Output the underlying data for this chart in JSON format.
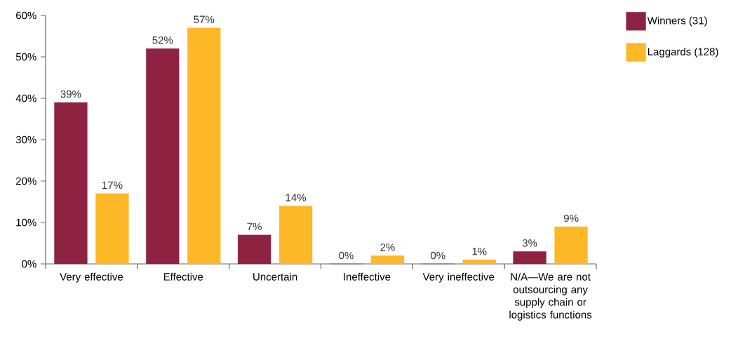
{
  "chart_data": {
    "type": "bar",
    "categories": [
      "Very effective",
      "Effective",
      "Uncertain",
      "Ineffective",
      "Very ineffective",
      "N/A—We are not outsourcing any supply chain or logistics functions"
    ],
    "series": [
      {
        "name": "Winners (31)",
        "color": "#8e2341",
        "values": [
          39,
          52,
          7,
          0,
          0,
          3
        ],
        "value_labels": [
          "39%",
          "52%",
          "7%",
          "0%",
          "0%",
          "3%"
        ]
      },
      {
        "name": "Laggards (128)",
        "color": "#fdb827",
        "values": [
          17,
          57,
          14,
          2,
          1,
          9
        ],
        "value_labels": [
          "17%",
          "57%",
          "14%",
          "2%",
          "1%",
          "9%"
        ]
      }
    ],
    "ylim": [
      0,
      60
    ],
    "yticks": [
      {
        "value": 0,
        "label": "0%"
      },
      {
        "value": 10,
        "label": "10%"
      },
      {
        "value": 20,
        "label": "20%"
      },
      {
        "value": 30,
        "label": "30%"
      },
      {
        "value": 40,
        "label": "40%"
      },
      {
        "value": 50,
        "label": "50%"
      },
      {
        "value": 60,
        "label": "60%"
      }
    ],
    "grid": false,
    "legend": "top right"
  }
}
